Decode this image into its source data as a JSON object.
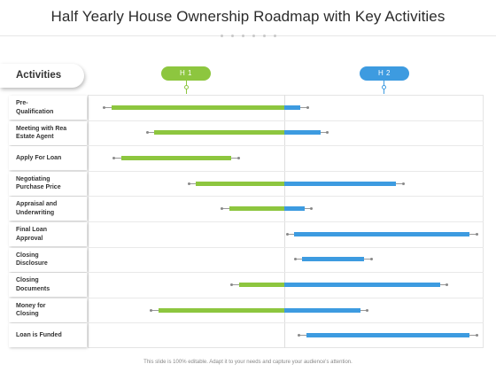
{
  "title": "Half Yearly House Ownership Roadmap with Key Activities",
  "activities_header": "Activities",
  "periods": [
    {
      "label": "H 1",
      "color": "#8dc63f"
    },
    {
      "label": "H 2",
      "color": "#3d9be0"
    }
  ],
  "activities": [
    {
      "label": "Pre-\nQualification",
      "h1_start": 0.88,
      "h2_end": 0.08
    },
    {
      "label": "Meeting with Rea\nEstate Agent",
      "h1_start": 0.66,
      "h2_end": 0.18
    },
    {
      "label": "Apply For Loan",
      "h1_start": 0.83,
      "h1_end": 0.27
    },
    {
      "label": "Negotiating\nPurchase Price",
      "h1_start": 0.45,
      "h2_end": 0.56
    },
    {
      "label": "Appraisal and\nUnderwriting",
      "h1_start": 0.28,
      "h2_end": 0.1
    },
    {
      "label": "Final Loan\nApproval",
      "h2_start": 0.05,
      "h2_end": 0.93
    },
    {
      "label": "Closing\nDisclosure",
      "h2_start": 0.09,
      "h2_end": 0.4
    },
    {
      "label": "Closing\nDocuments",
      "h1_start": 0.23,
      "h2_end": 0.78
    },
    {
      "label": "Money for\nClosing",
      "h1_start": 0.64,
      "h2_end": 0.38
    },
    {
      "label": "Loan is Funded",
      "h2_start": 0.11,
      "h2_end": 0.93
    }
  ],
  "footer": "This slide is 100% editable. Adapt it to your needs and capture your audience's attention."
}
